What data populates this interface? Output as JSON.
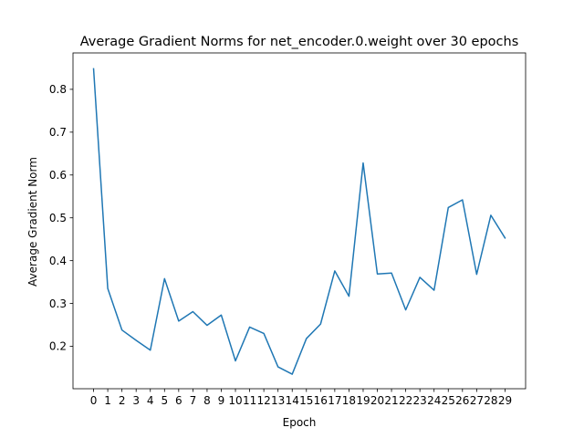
{
  "chart_data": {
    "type": "line",
    "title": "Average Gradient Norms for net_encoder.0.weight over 30 epochs",
    "xlabel": "Epoch",
    "ylabel": "Average Gradient Norm",
    "x": [
      0,
      1,
      2,
      3,
      4,
      5,
      6,
      7,
      8,
      9,
      10,
      11,
      12,
      13,
      14,
      15,
      16,
      17,
      18,
      19,
      20,
      21,
      22,
      23,
      24,
      25,
      26,
      27,
      28,
      29
    ],
    "x_tick_labels": [
      "0",
      "1",
      "2",
      "3",
      "4",
      "5",
      "6",
      "7",
      "8",
      "9",
      "10",
      "11",
      "12",
      "13",
      "14",
      "15",
      "16",
      "17",
      "18",
      "19",
      "20",
      "21",
      "22",
      "23",
      "24",
      "25",
      "26",
      "27",
      "28",
      "29"
    ],
    "y_ticks": [
      0.2,
      0.3,
      0.4,
      0.5,
      0.6,
      0.7,
      0.8
    ],
    "y_tick_labels": [
      "0.2",
      "0.3",
      "0.4",
      "0.5",
      "0.6",
      "0.7",
      "0.8"
    ],
    "xlim": [
      -1.45,
      30.45
    ],
    "ylim": [
      0.101,
      0.885
    ],
    "grid": false,
    "legend": "none",
    "series": [
      {
        "color": "#1f77b4",
        "values": [
          0.848,
          0.335,
          0.238,
          0.214,
          0.191,
          0.358,
          0.259,
          0.281,
          0.249,
          0.273,
          0.166,
          0.245,
          0.23,
          0.152,
          0.135,
          0.218,
          0.252,
          0.376,
          0.317,
          0.628,
          0.369,
          0.371,
          0.285,
          0.361,
          0.331,
          0.524,
          0.542,
          0.368,
          0.506,
          0.453
        ]
      }
    ]
  }
}
